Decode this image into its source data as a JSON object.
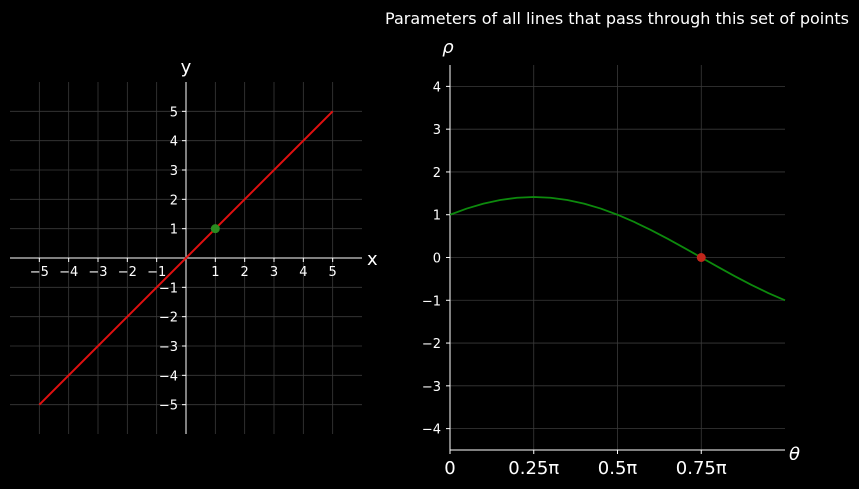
{
  "chart_data": [
    {
      "type": "line",
      "title": "",
      "xlabel": "x",
      "ylabel": "y",
      "xlim": [
        -6,
        6
      ],
      "ylim": [
        -6,
        6
      ],
      "xticks": [
        -5,
        -4,
        -3,
        -2,
        -1,
        1,
        2,
        3,
        4,
        5
      ],
      "yticks": [
        -5,
        -4,
        -3,
        -2,
        -1,
        1,
        2,
        3,
        4,
        5
      ],
      "grid": true,
      "series": [
        {
          "type": "line",
          "color": "#e01010",
          "x": [
            -5,
            5
          ],
          "y": [
            -5,
            5
          ]
        },
        {
          "type": "scatter",
          "color": "#2a8a1f",
          "x": [
            1
          ],
          "y": [
            1
          ]
        }
      ]
    },
    {
      "type": "line",
      "title": "Parameters of all lines that pass through this set of points",
      "xlabel": "θ",
      "ylabel": "ρ",
      "xlim": [
        0,
        1
      ],
      "ylim": [
        -4.5,
        4.5
      ],
      "x_unit": "π radians",
      "xticks": [
        0,
        0.25,
        0.5,
        0.75
      ],
      "xtick_labels": [
        "0",
        "0.25π",
        "0.5π",
        "0.75π"
      ],
      "yticks": [
        -4,
        -3,
        -2,
        -1,
        0,
        1,
        2,
        3,
        4
      ],
      "grid": true,
      "series": [
        {
          "type": "line",
          "color": "#0d8a0d",
          "x": [
            0,
            0.05,
            0.1,
            0.15,
            0.2,
            0.25,
            0.3,
            0.35,
            0.4,
            0.45,
            0.5,
            0.55,
            0.6,
            0.65,
            0.7,
            0.75,
            0.8,
            0.85,
            0.9,
            0.95,
            1.0
          ],
          "y": [
            1.0,
            1.144,
            1.26,
            1.345,
            1.397,
            1.414,
            1.397,
            1.345,
            1.26,
            1.144,
            1.0,
            0.831,
            0.642,
            0.437,
            0.221,
            0.0,
            -0.221,
            -0.437,
            -0.642,
            -0.831,
            -1.0
          ]
        },
        {
          "type": "scatter",
          "color": "#c0261b",
          "x": [
            0.75
          ],
          "y": [
            0
          ]
        }
      ]
    }
  ]
}
